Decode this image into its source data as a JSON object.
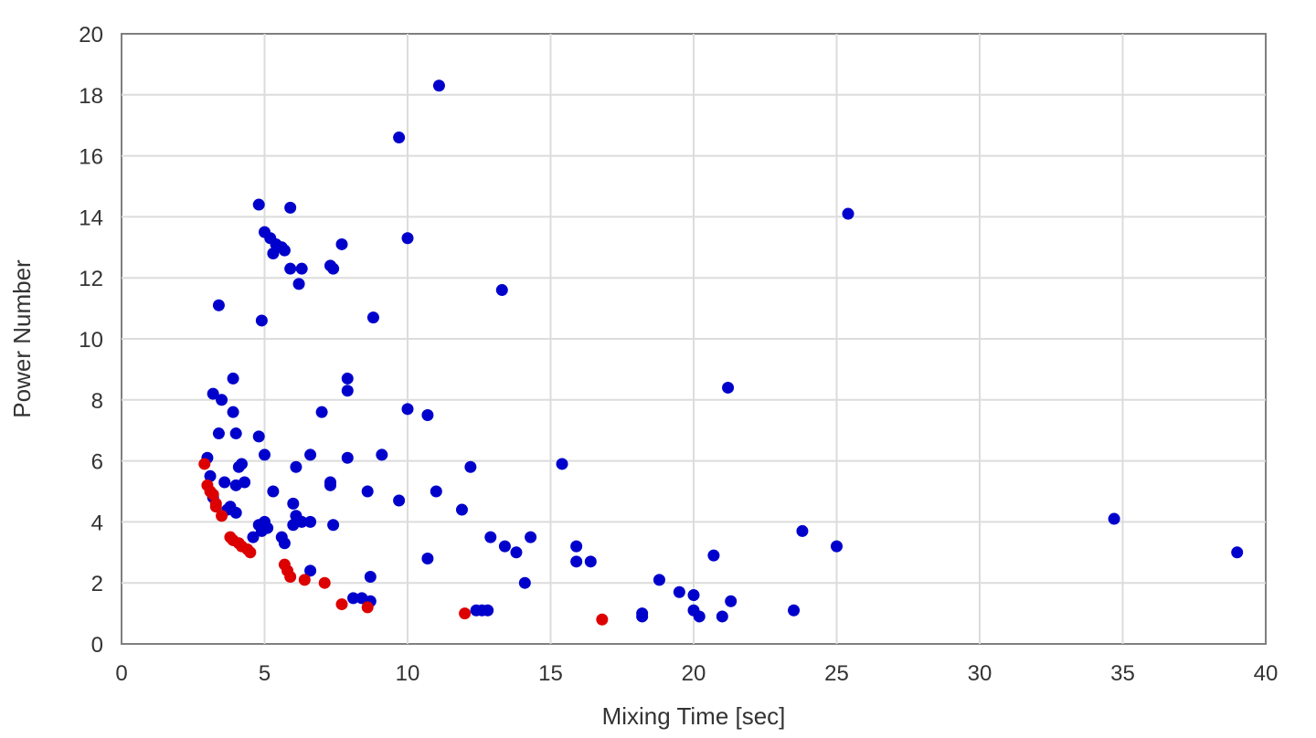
{
  "chart_data": {
    "type": "scatter",
    "title": "",
    "xlabel": "Mixing Time [sec]",
    "ylabel": "Power Number",
    "xlim": [
      0,
      40
    ],
    "ylim": [
      0,
      20
    ],
    "x_ticks": [
      0,
      5,
      10,
      15,
      20,
      25,
      30,
      35,
      40
    ],
    "y_ticks": [
      0,
      2,
      4,
      6,
      8,
      10,
      12,
      14,
      16,
      18,
      20
    ],
    "x_tick_labels": [
      "0",
      "5",
      "10",
      "15",
      "20",
      "25",
      "30",
      "35",
      "40"
    ],
    "y_tick_labels": [
      "0",
      "2",
      "4",
      "6",
      "8",
      "10",
      "12",
      "14",
      "16",
      "18",
      "20"
    ],
    "grid": true,
    "legend": false,
    "series": [
      {
        "color": "#0000cc",
        "points": [
          [
            4.8,
            14.4
          ],
          [
            5.9,
            14.3
          ],
          [
            5.0,
            13.5
          ],
          [
            5.2,
            13.3
          ],
          [
            5.4,
            13.1
          ],
          [
            5.6,
            13.0
          ],
          [
            5.7,
            12.9
          ],
          [
            5.3,
            12.8
          ],
          [
            7.7,
            13.1
          ],
          [
            5.9,
            12.3
          ],
          [
            6.3,
            12.3
          ],
          [
            7.3,
            12.4
          ],
          [
            7.4,
            12.3
          ],
          [
            6.2,
            11.8
          ],
          [
            11.1,
            18.3
          ],
          [
            9.7,
            16.6
          ],
          [
            10.0,
            13.3
          ],
          [
            13.3,
            11.6
          ],
          [
            3.4,
            11.1
          ],
          [
            4.9,
            10.6
          ],
          [
            8.8,
            10.7
          ],
          [
            3.9,
            8.7
          ],
          [
            7.9,
            8.7
          ],
          [
            7.9,
            8.3
          ],
          [
            3.2,
            8.2
          ],
          [
            3.5,
            8.0
          ],
          [
            3.9,
            7.6
          ],
          [
            7.0,
            7.6
          ],
          [
            10.0,
            7.7
          ],
          [
            10.7,
            7.5
          ],
          [
            3.4,
            6.9
          ],
          [
            4.0,
            6.9
          ],
          [
            4.8,
            6.8
          ],
          [
            3.0,
            6.1
          ],
          [
            5.0,
            6.2
          ],
          [
            6.6,
            6.2
          ],
          [
            7.9,
            6.1
          ],
          [
            9.1,
            6.2
          ],
          [
            4.2,
            5.9
          ],
          [
            4.1,
            5.8
          ],
          [
            6.1,
            5.8
          ],
          [
            12.2,
            5.8
          ],
          [
            15.4,
            5.9
          ],
          [
            3.1,
            5.5
          ],
          [
            3.6,
            5.3
          ],
          [
            4.3,
            5.3
          ],
          [
            4.0,
            5.2
          ],
          [
            7.3,
            5.3
          ],
          [
            7.3,
            5.2
          ],
          [
            5.3,
            5.0
          ],
          [
            8.6,
            5.0
          ],
          [
            11.0,
            5.0
          ],
          [
            3.2,
            4.8
          ],
          [
            9.7,
            4.7
          ],
          [
            6.0,
            4.6
          ],
          [
            3.8,
            4.5
          ],
          [
            3.7,
            4.4
          ],
          [
            4.0,
            4.3
          ],
          [
            11.9,
            4.4
          ],
          [
            6.1,
            4.2
          ],
          [
            6.3,
            4.0
          ],
          [
            6.6,
            4.0
          ],
          [
            7.4,
            3.9
          ],
          [
            5.0,
            4.0
          ],
          [
            4.8,
            3.9
          ],
          [
            4.9,
            3.7
          ],
          [
            5.1,
            3.8
          ],
          [
            4.6,
            3.5
          ],
          [
            5.6,
            3.5
          ],
          [
            6.0,
            3.9
          ],
          [
            5.7,
            3.3
          ],
          [
            12.9,
            3.5
          ],
          [
            14.3,
            3.5
          ],
          [
            13.4,
            3.2
          ],
          [
            13.8,
            3.0
          ],
          [
            15.9,
            3.2
          ],
          [
            15.9,
            2.7
          ],
          [
            16.4,
            2.7
          ],
          [
            20.7,
            2.9
          ],
          [
            10.7,
            2.8
          ],
          [
            23.8,
            3.7
          ],
          [
            25.0,
            3.2
          ],
          [
            34.7,
            4.1
          ],
          [
            39.0,
            3.0
          ],
          [
            21.2,
            8.4
          ],
          [
            25.4,
            14.1
          ],
          [
            6.6,
            2.4
          ],
          [
            8.7,
            2.2
          ],
          [
            14.1,
            2.0
          ],
          [
            18.8,
            2.1
          ],
          [
            19.5,
            1.7
          ],
          [
            20.0,
            1.6
          ],
          [
            21.3,
            1.4
          ],
          [
            8.1,
            1.5
          ],
          [
            8.4,
            1.5
          ],
          [
            8.7,
            1.4
          ],
          [
            12.4,
            1.1
          ],
          [
            12.6,
            1.1
          ],
          [
            12.8,
            1.1
          ],
          [
            18.2,
            1.0
          ],
          [
            18.2,
            0.9
          ],
          [
            20.0,
            1.1
          ],
          [
            20.2,
            0.9
          ],
          [
            21.0,
            0.9
          ],
          [
            23.5,
            1.1
          ]
        ]
      },
      {
        "color": "#dd0000",
        "points": [
          [
            2.9,
            5.9
          ],
          [
            3.0,
            5.2
          ],
          [
            3.1,
            5.0
          ],
          [
            3.2,
            4.9
          ],
          [
            3.3,
            4.6
          ],
          [
            3.3,
            4.5
          ],
          [
            3.5,
            4.2
          ],
          [
            3.8,
            3.5
          ],
          [
            3.9,
            3.4
          ],
          [
            4.1,
            3.3
          ],
          [
            4.2,
            3.2
          ],
          [
            4.4,
            3.1
          ],
          [
            4.5,
            3.0
          ],
          [
            5.7,
            2.6
          ],
          [
            5.8,
            2.4
          ],
          [
            5.9,
            2.2
          ],
          [
            6.4,
            2.1
          ],
          [
            7.1,
            2.0
          ],
          [
            7.7,
            1.3
          ],
          [
            8.6,
            1.2
          ],
          [
            12.0,
            1.0
          ],
          [
            16.8,
            0.8
          ]
        ]
      }
    ]
  }
}
